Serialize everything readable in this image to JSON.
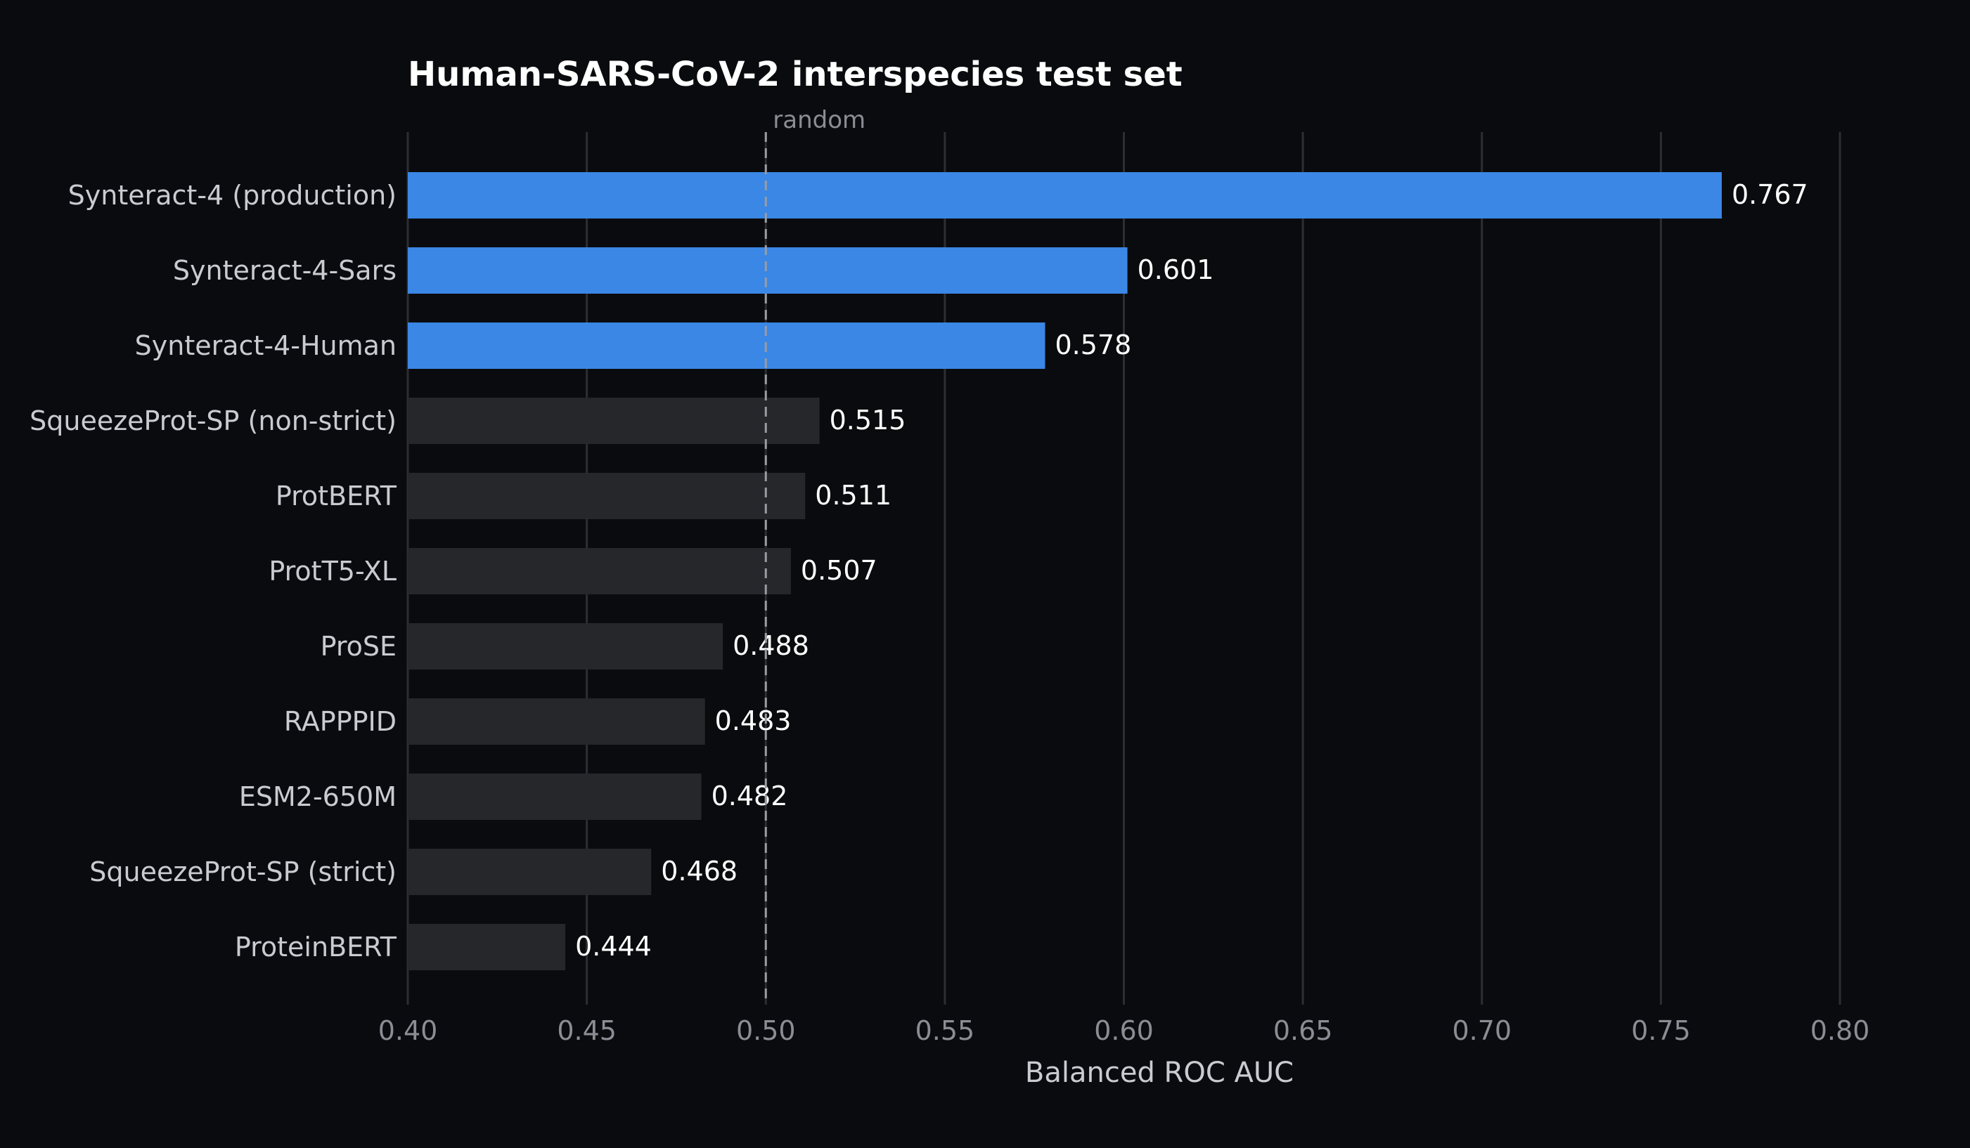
{
  "chart_data": {
    "type": "bar",
    "orientation": "horizontal",
    "title": "Human-SARS-CoV-2 interspecies test set",
    "xlabel": "Balanced ROC AUC",
    "ylabel": "",
    "xlim": [
      0.4,
      0.8
    ],
    "xticks": [
      "0.40",
      "0.45",
      "0.50",
      "0.55",
      "0.60",
      "0.65",
      "0.70",
      "0.75",
      "0.80"
    ],
    "grid": "vertical",
    "categories": [
      "Synteract-4 (production)",
      "Synteract-4-Sars",
      "Synteract-4-Human",
      "SqueezeProt-SP (non-strict)",
      "ProtBERT",
      "ProtT5-XL",
      "ProSE",
      "RAPPPID",
      "ESM2-650M",
      "SqueezeProt-SP (strict)",
      "ProteinBERT"
    ],
    "values": [
      0.767,
      0.601,
      0.578,
      0.515,
      0.511,
      0.507,
      0.488,
      0.483,
      0.482,
      0.468,
      0.444
    ],
    "value_labels": [
      "0.767",
      "0.601",
      "0.578",
      "0.515",
      "0.511",
      "0.507",
      "0.488",
      "0.483",
      "0.482",
      "0.468",
      "0.444"
    ],
    "highlighted": [
      true,
      true,
      true,
      false,
      false,
      false,
      false,
      false,
      false,
      false,
      false
    ],
    "reference_line": {
      "value": 0.5,
      "label": "random",
      "style": "dashed"
    },
    "colors": {
      "highlight": "#3a87e5",
      "default": "#26272b",
      "background": "#0a0b0e",
      "grid": "#2c2e34",
      "reference": "#9a9ca2"
    }
  }
}
